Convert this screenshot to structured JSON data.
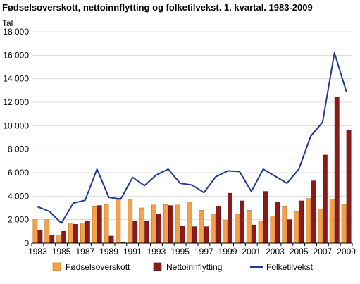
{
  "chart_data": {
    "type": "bar+line",
    "title": "Fødselsoverskott, nettoinnflytting og folketilvekst. 1. kvartal. 1983-2009",
    "ylabel": "Tal",
    "ylim": [
      0,
      18000
    ],
    "yticks": [
      0,
      2000,
      4000,
      6000,
      8000,
      10000,
      12000,
      14000,
      16000,
      18000
    ],
    "ytick_labels": [
      "0",
      "2 000",
      "4 000",
      "6 000",
      "8 000",
      "10 000",
      "12 000",
      "14 000",
      "16 000",
      "18 000"
    ],
    "x": [
      1983,
      1984,
      1985,
      1986,
      1987,
      1988,
      1989,
      1990,
      1991,
      1992,
      1993,
      1994,
      1995,
      1996,
      1997,
      1998,
      1999,
      2000,
      2001,
      2002,
      2003,
      2004,
      2005,
      2006,
      2007,
      2008,
      2009
    ],
    "xtick_labels": [
      "1983",
      "1985",
      "1987",
      "1989",
      "1991",
      "1993",
      "1995",
      "1997",
      "1999",
      "2001",
      "2003",
      "2005",
      "2007",
      "2009"
    ],
    "grid": true,
    "legend_position": "bottom",
    "series": [
      {
        "name": "Fødselsoverskott",
        "kind": "bar",
        "color": "#f5a04a",
        "values": [
          2000,
          2000,
          700,
          1700,
          1700,
          3100,
          3300,
          3700,
          3750,
          3000,
          3250,
          3300,
          3250,
          3500,
          2800,
          2500,
          1950,
          2500,
          2800,
          1900,
          2300,
          3100,
          2700,
          3800,
          2900,
          3750,
          3300
        ]
      },
      {
        "name": "Nettoinnflytting",
        "kind": "bar",
        "color": "#8b1a1a",
        "values": [
          1100,
          700,
          1000,
          1600,
          1850,
          3200,
          600,
          100,
          1850,
          1850,
          2500,
          3200,
          1450,
          1400,
          1400,
          3150,
          4250,
          3600,
          1550,
          4400,
          3500,
          2000,
          3600,
          5300,
          7500,
          12400,
          9600
        ]
      },
      {
        "name": "Folketilvekst",
        "kind": "line",
        "color": "#1f3a93",
        "values": [
          3100,
          2700,
          1700,
          3400,
          3650,
          6300,
          3900,
          3750,
          5600,
          4900,
          5800,
          6300,
          5100,
          4950,
          4300,
          5650,
          6150,
          6100,
          4400,
          6300,
          5700,
          5100,
          6300,
          9100,
          10300,
          16200,
          12900
        ]
      }
    ]
  }
}
